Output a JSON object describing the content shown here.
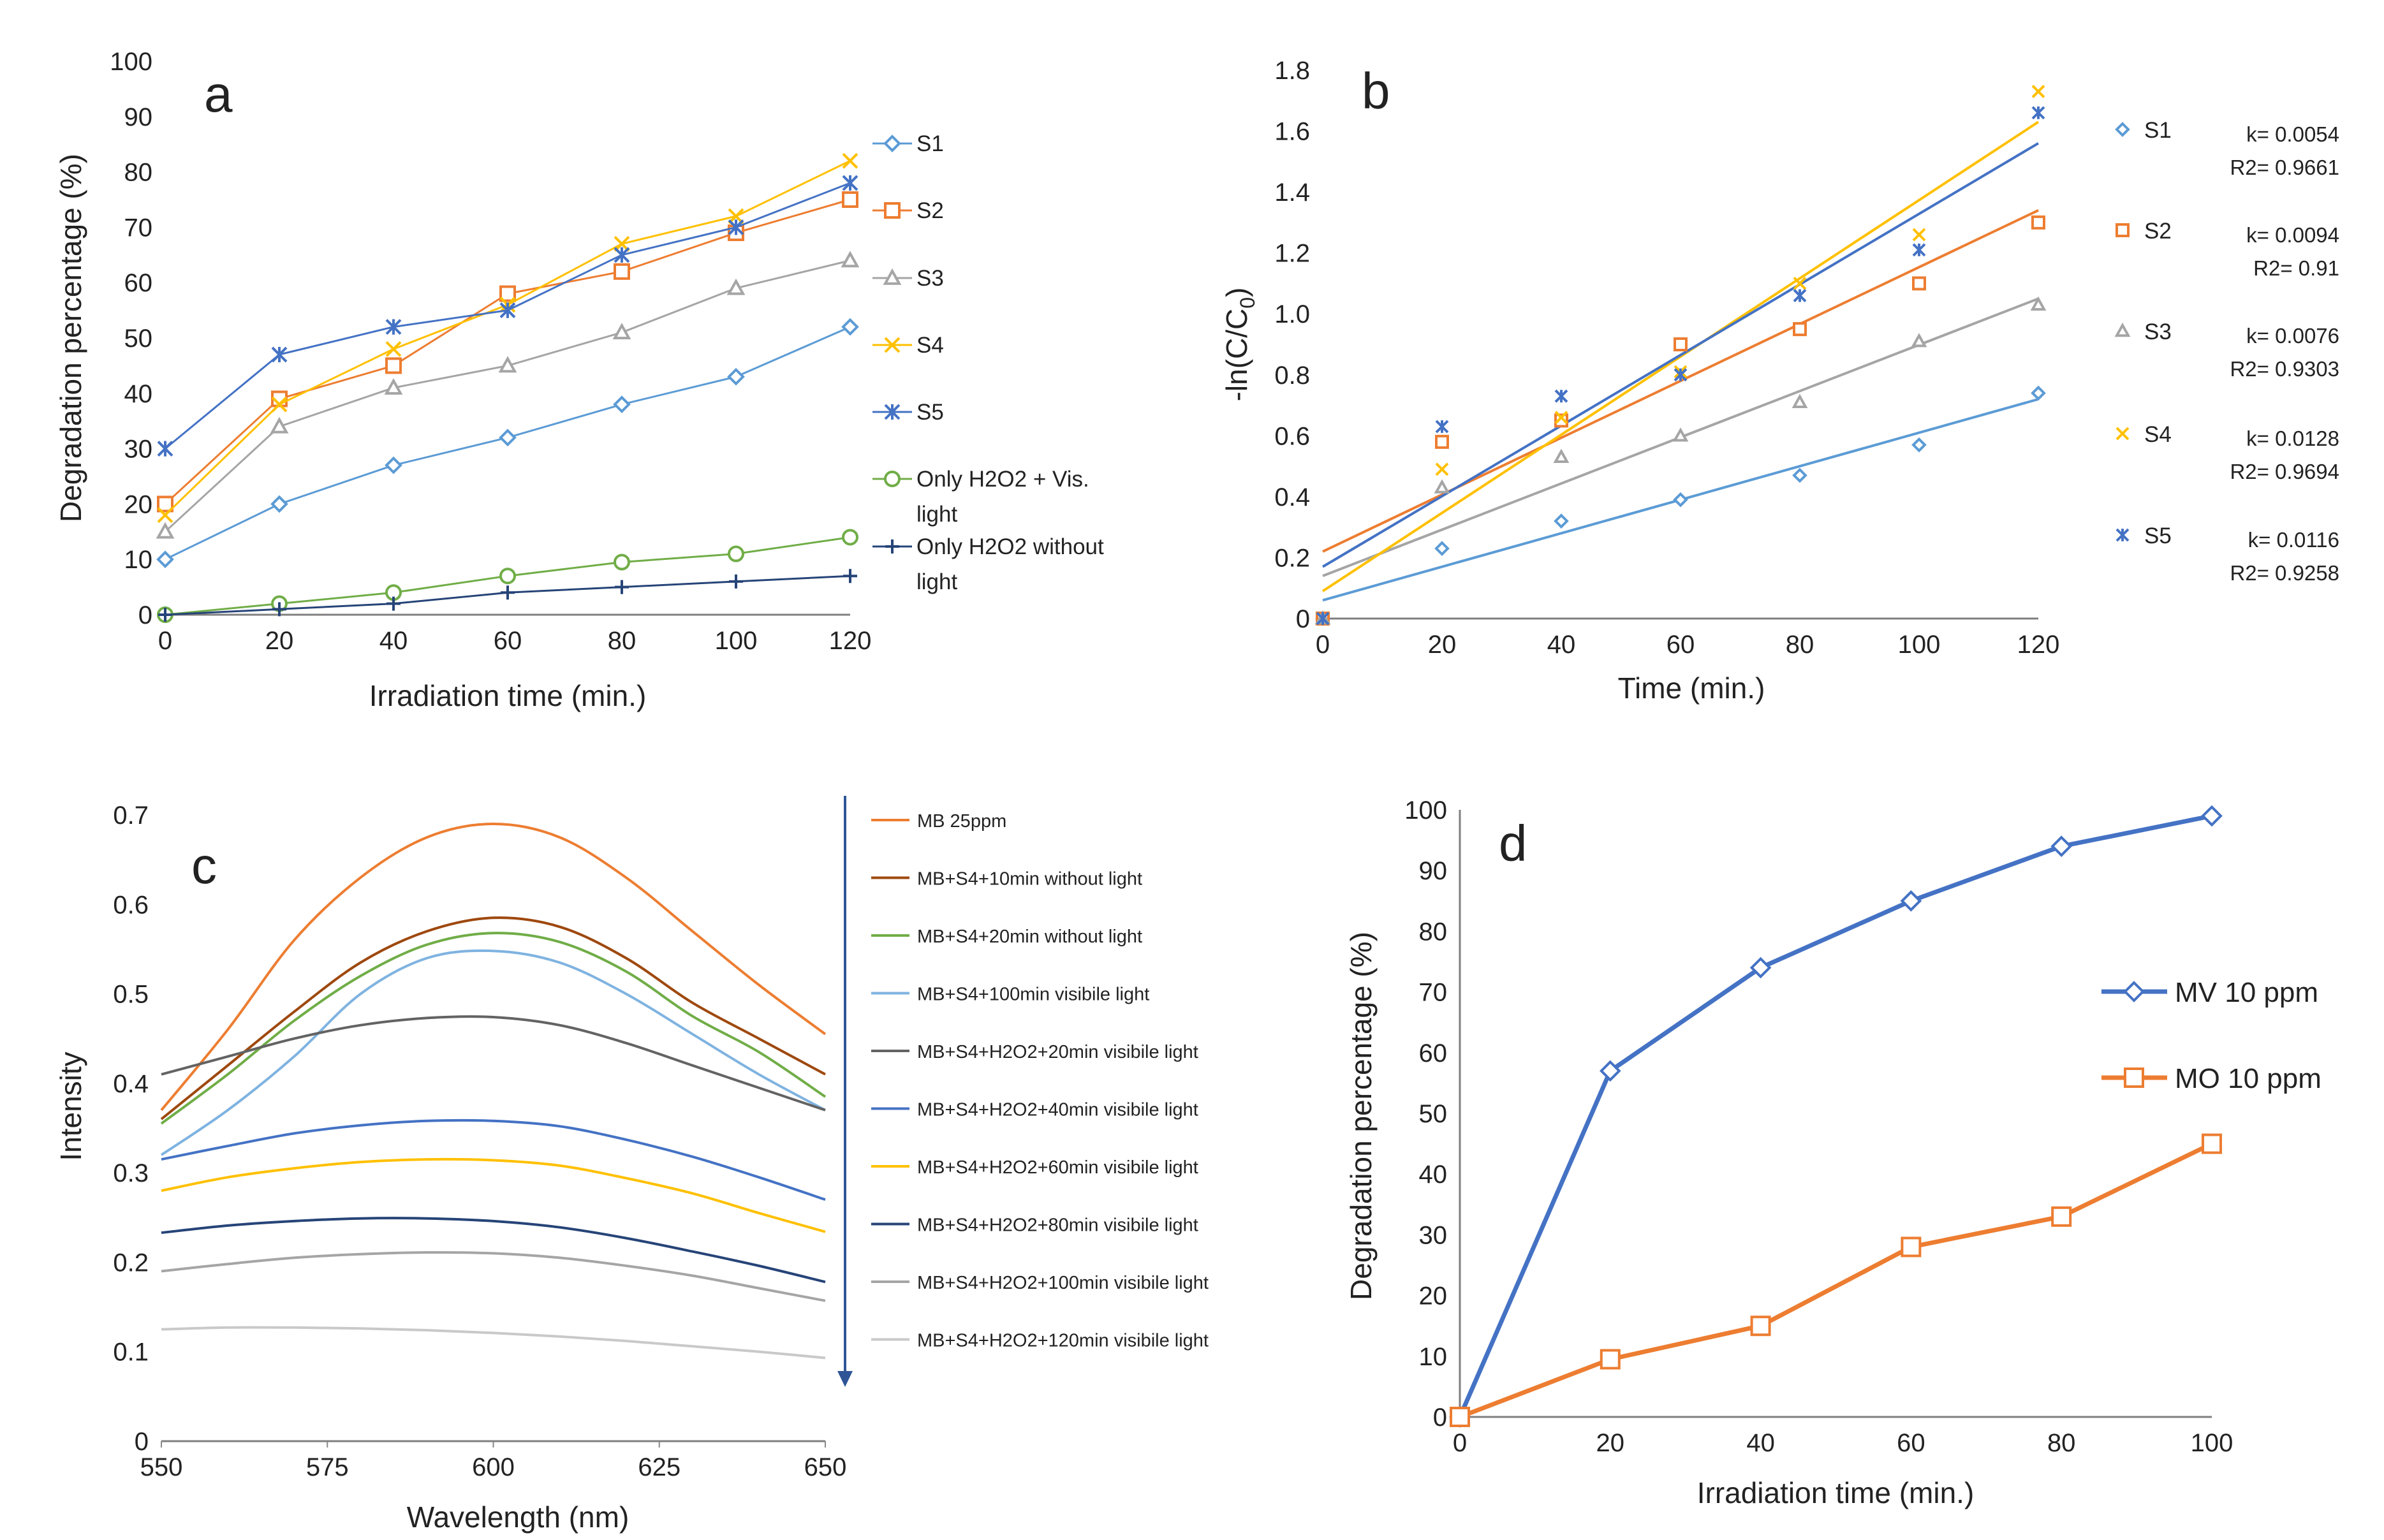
{
  "chart_data": [
    {
      "panel": "a",
      "type": "line",
      "xlabel": "Irradiation time (min.)",
      "ylabel": "Degradation percentage (%)",
      "xlim": [
        0,
        120
      ],
      "ylim": [
        0,
        100
      ],
      "xticks": [
        "0",
        "20",
        "40",
        "60",
        "80",
        "100",
        "120"
      ],
      "yticks": [
        "0",
        "10",
        "20",
        "30",
        "40",
        "50",
        "60",
        "70",
        "80",
        "90",
        "100"
      ],
      "legend_position": "right",
      "x": [
        0,
        20,
        40,
        60,
        80,
        100,
        120
      ],
      "series": [
        {
          "name": "S1",
          "marker": "diamond",
          "color": "#5B9BD5",
          "values": [
            10,
            20,
            27,
            32,
            38,
            43,
            52
          ]
        },
        {
          "name": "S2",
          "marker": "square",
          "color": "#ED7D31",
          "values": [
            20,
            39,
            45,
            58,
            62,
            69,
            75
          ]
        },
        {
          "name": "S3",
          "marker": "triangle",
          "color": "#A5A5A5",
          "values": [
            15,
            34,
            41,
            45,
            51,
            59,
            64
          ]
        },
        {
          "name": "S4",
          "marker": "x",
          "color": "#FFC000",
          "values": [
            18,
            38,
            48,
            56,
            67,
            72,
            82
          ]
        },
        {
          "name": "S5",
          "marker": "asterisk",
          "color": "#4472C4",
          "values": [
            30,
            47,
            52,
            55,
            65,
            70,
            78
          ]
        },
        {
          "name": "Only H2O2 + Vis. light",
          "marker": "circle",
          "color": "#70AD47",
          "values": [
            0,
            2,
            4,
            7,
            9.5,
            11,
            14
          ]
        },
        {
          "name": "Only H2O2 without light",
          "marker": "plus",
          "color": "#264478",
          "values": [
            0,
            1,
            2,
            4,
            5,
            6,
            7
          ]
        }
      ]
    },
    {
      "panel": "b",
      "type": "scatter",
      "xlabel": "Time (min.)",
      "ylabel_main": "-ln(C/C",
      "ylabel_sub": "0",
      "ylabel_end": ")",
      "xlim": [
        0,
        120
      ],
      "ylim": [
        0,
        1.8
      ],
      "xticks": [
        "0",
        "20",
        "40",
        "60",
        "80",
        "100",
        "120"
      ],
      "yticks": [
        "0",
        "0.2",
        "0.4",
        "0.6",
        "0.8",
        "1.0",
        "1.2",
        "1.4",
        "1.6",
        "1.8"
      ],
      "legend_position": "right",
      "x": [
        0,
        20,
        40,
        60,
        80,
        100,
        120
      ],
      "series": [
        {
          "name": "S1",
          "marker": "diamond",
          "color": "#5B9BD5",
          "values": [
            0,
            0.23,
            0.32,
            0.39,
            0.47,
            0.57,
            0.74
          ],
          "fit": [
            0.06,
            0.72
          ],
          "k": "k= 0.0054",
          "r2": "R2= 0.9661"
        },
        {
          "name": "S2",
          "marker": "square",
          "color": "#ED7D31",
          "values": [
            0,
            0.58,
            0.65,
            0.9,
            0.95,
            1.1,
            1.3
          ],
          "fit": [
            0.22,
            1.34
          ],
          "k": "k= 0.0094",
          "r2": "R2= 0.91"
        },
        {
          "name": "S3",
          "marker": "triangle",
          "color": "#A5A5A5",
          "values": [
            0,
            0.43,
            0.53,
            0.6,
            0.71,
            0.91,
            1.03
          ],
          "fit": [
            0.14,
            1.05
          ],
          "k": "k= 0.0076",
          "r2": "R2= 0.9303"
        },
        {
          "name": "S4",
          "marker": "x",
          "color": "#FFC000",
          "values": [
            0,
            0.49,
            0.66,
            0.81,
            1.1,
            1.26,
            1.73
          ],
          "fit": [
            0.09,
            1.63
          ],
          "k": "k= 0.0128",
          "r2": "R2= 0.9694"
        },
        {
          "name": "S5",
          "marker": "asterisk",
          "color": "#4472C4",
          "values": [
            0,
            0.63,
            0.73,
            0.8,
            1.06,
            1.21,
            1.66
          ],
          "fit": [
            0.17,
            1.56
          ],
          "k": "k= 0.0116",
          "r2": "R2= 0.9258"
        }
      ]
    },
    {
      "panel": "c",
      "type": "line",
      "xlabel": "Wavelength (nm)",
      "ylabel": "Intensity",
      "xlim": [
        550,
        650
      ],
      "ylim": [
        0,
        0.7
      ],
      "xticks": [
        "550",
        "575",
        "600",
        "625",
        "650"
      ],
      "yticks": [
        "0",
        "0.1",
        "0.2",
        "0.3",
        "0.4",
        "0.5",
        "0.6",
        "0.7"
      ],
      "legend_position": "right",
      "x": [
        550,
        560,
        570,
        580,
        590,
        600,
        610,
        620,
        630,
        640,
        650
      ],
      "series": [
        {
          "name": "MB 25ppm",
          "color": "#ED7D31",
          "values": [
            0.37,
            0.46,
            0.56,
            0.63,
            0.675,
            0.69,
            0.675,
            0.63,
            0.57,
            0.51,
            0.455
          ]
        },
        {
          "name": "MB+S4+10min without light",
          "color": "#9E480E",
          "values": [
            0.36,
            0.42,
            0.48,
            0.535,
            0.57,
            0.585,
            0.575,
            0.54,
            0.49,
            0.45,
            0.41
          ]
        },
        {
          "name": "MB+S4+20min without light",
          "color": "#70AD47",
          "values": [
            0.355,
            0.41,
            0.47,
            0.52,
            0.555,
            0.568,
            0.558,
            0.525,
            0.475,
            0.435,
            0.385
          ]
        },
        {
          "name": "MB+S4+100min visibile light",
          "color": "#7FB3E0",
          "values": [
            0.32,
            0.37,
            0.43,
            0.5,
            0.54,
            0.548,
            0.535,
            0.5,
            0.455,
            0.41,
            0.37
          ]
        },
        {
          "name": "MB+S4+H2O2+20min visibile light",
          "color": "#636363",
          "values": [
            0.41,
            0.43,
            0.45,
            0.465,
            0.473,
            0.474,
            0.465,
            0.445,
            0.42,
            0.395,
            0.37
          ]
        },
        {
          "name": "MB+S4+H2O2+40min visibile light",
          "color": "#4472C4",
          "values": [
            0.315,
            0.33,
            0.344,
            0.353,
            0.358,
            0.358,
            0.352,
            0.337,
            0.318,
            0.295,
            0.27
          ]
        },
        {
          "name": "MB+S4+H2O2+60min visibile light",
          "color": "#FFC000",
          "values": [
            0.28,
            0.295,
            0.305,
            0.312,
            0.315,
            0.314,
            0.308,
            0.294,
            0.277,
            0.255,
            0.234
          ]
        },
        {
          "name": "MB+S4+H2O2+80min visibile light",
          "color": "#264478",
          "values": [
            0.233,
            0.241,
            0.246,
            0.249,
            0.249,
            0.246,
            0.239,
            0.227,
            0.212,
            0.196,
            0.178
          ]
        },
        {
          "name": "MB+S4+H2O2+100min visibile light",
          "color": "#A5A5A5",
          "values": [
            0.19,
            0.198,
            0.205,
            0.209,
            0.211,
            0.21,
            0.205,
            0.196,
            0.185,
            0.171,
            0.157
          ]
        },
        {
          "name": "MB+S4+H2O2+120min visibile light",
          "color": "#C9C9C9",
          "values": [
            0.125,
            0.127,
            0.127,
            0.126,
            0.124,
            0.121,
            0.117,
            0.112,
            0.106,
            0.1,
            0.093
          ]
        }
      ]
    },
    {
      "panel": "d",
      "type": "line",
      "xlabel": "Irradiation time (min.)",
      "ylabel": "Degradation percentage (%)",
      "xlim": [
        0,
        100
      ],
      "ylim": [
        0,
        100
      ],
      "xticks": [
        "0",
        "20",
        "40",
        "60",
        "80",
        "100"
      ],
      "yticks": [
        "0",
        "10",
        "20",
        "30",
        "40",
        "50",
        "60",
        "70",
        "80",
        "90",
        "100"
      ],
      "legend_position": "right",
      "x": [
        0,
        20,
        40,
        60,
        80,
        100
      ],
      "series": [
        {
          "name": "MV 10 ppm",
          "marker": "diamond",
          "color": "#4472C4",
          "values": [
            0,
            57,
            74,
            85,
            94,
            99
          ]
        },
        {
          "name": "MO 10 ppm",
          "marker": "square",
          "color": "#ED7D31",
          "values": [
            0,
            9.5,
            15,
            28,
            33,
            45
          ]
        }
      ]
    }
  ]
}
